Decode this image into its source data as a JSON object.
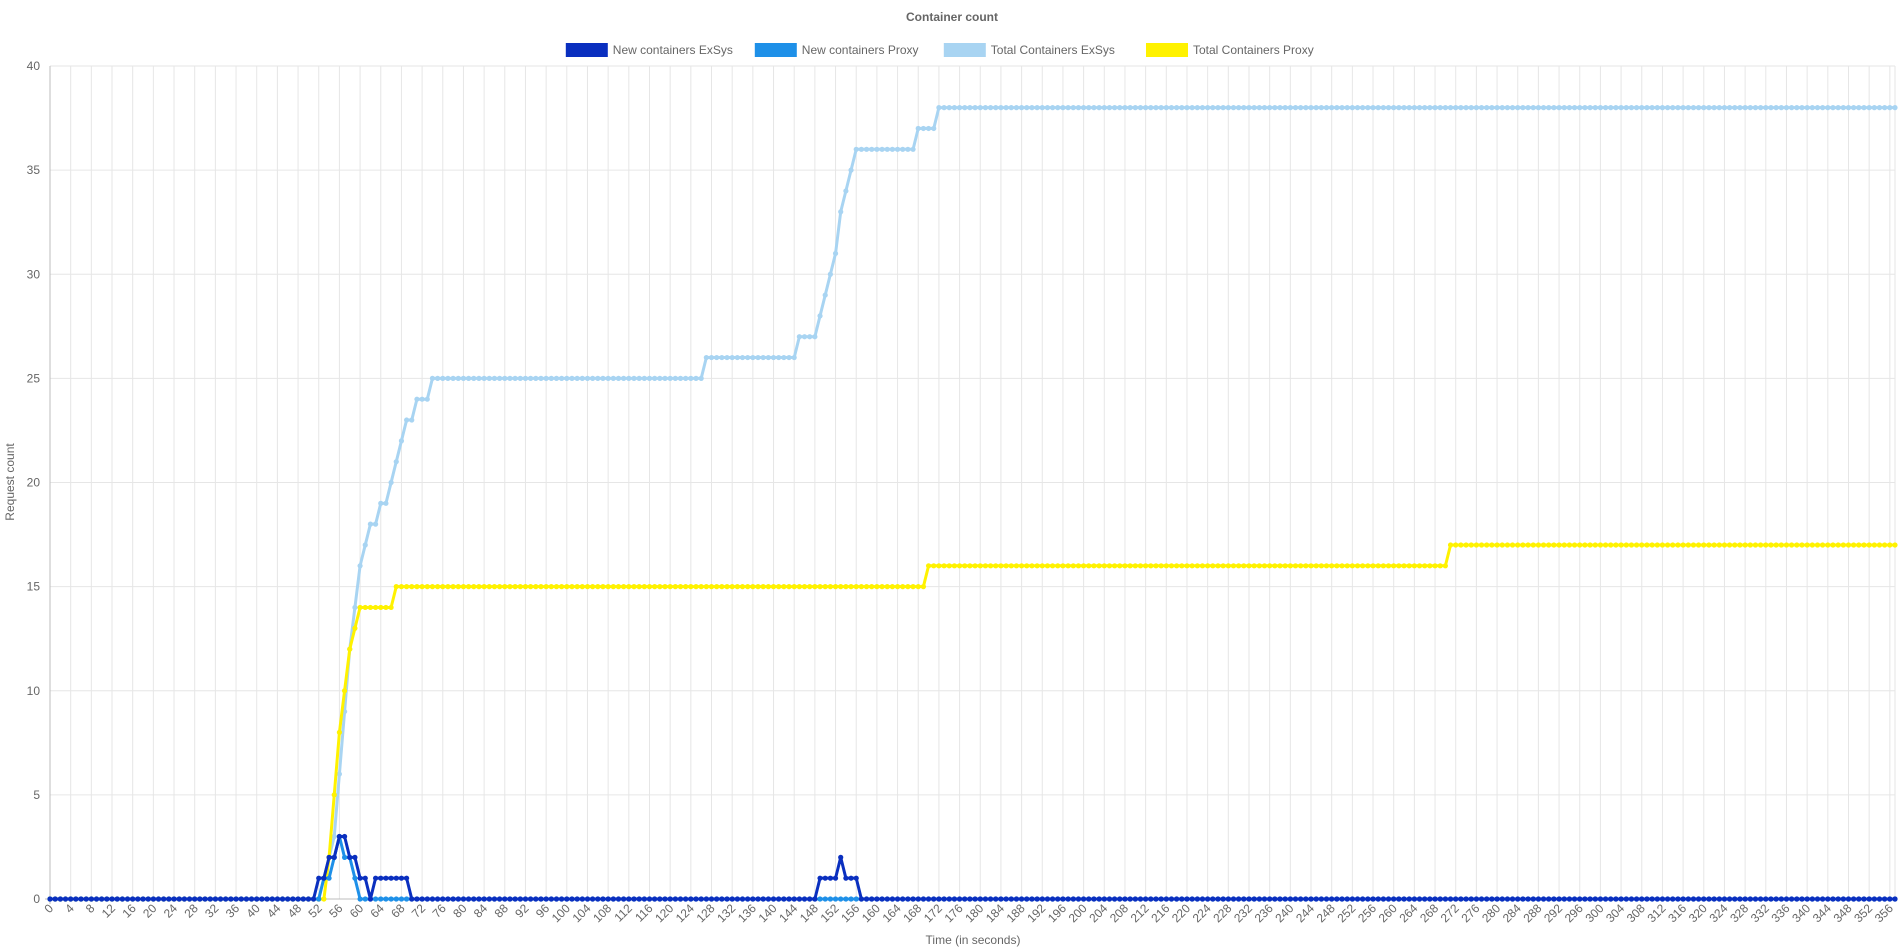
{
  "chart_data": {
    "type": "line",
    "title": "Container count",
    "xlabel": "Time (in seconds)",
    "ylabel": "Request count",
    "xlim": [
      0,
      357
    ],
    "ylim": [
      0,
      40
    ],
    "y_ticks": [
      0,
      5,
      10,
      15,
      20,
      25,
      30,
      35,
      40
    ],
    "x_ticks": [
      0,
      4,
      8,
      12,
      16,
      20,
      24,
      28,
      32,
      36,
      40,
      44,
      48,
      52,
      56,
      60,
      64,
      68,
      72,
      76,
      80,
      84,
      88,
      92,
      96,
      100,
      104,
      108,
      112,
      116,
      120,
      124,
      128,
      132,
      136,
      140,
      144,
      148,
      152,
      156,
      160,
      164,
      168,
      172,
      176,
      180,
      184,
      188,
      192,
      196,
      200,
      204,
      208,
      212,
      216,
      220,
      224,
      228,
      232,
      236,
      240,
      244,
      248,
      252,
      256,
      260,
      264,
      268,
      272,
      276,
      280,
      284,
      288,
      292,
      296,
      300,
      304,
      308,
      312,
      316,
      320,
      324,
      328,
      332,
      336,
      340,
      344,
      348,
      352,
      356
    ],
    "grid": true,
    "legend_position": "top",
    "series": [
      {
        "name": "New containers ExSys",
        "color": "#0a2fbf",
        "steps": [
          [
            0,
            0
          ],
          [
            52,
            1
          ],
          [
            54,
            2
          ],
          [
            56,
            3
          ],
          [
            58,
            2
          ],
          [
            60,
            1
          ],
          [
            62,
            0
          ],
          [
            63,
            1
          ],
          [
            70,
            0
          ],
          [
            149,
            1
          ],
          [
            153,
            2
          ],
          [
            154,
            1
          ],
          [
            157,
            0
          ]
        ]
      },
      {
        "name": "New containers Proxy",
        "color": "#1e90e8",
        "steps": [
          [
            0,
            0
          ],
          [
            53,
            1
          ],
          [
            55,
            2
          ],
          [
            56,
            3
          ],
          [
            57,
            2
          ],
          [
            59,
            1
          ],
          [
            60,
            0
          ]
        ]
      },
      {
        "name": "Total Containers ExSys",
        "color": "#a8d4f2",
        "steps": [
          [
            0,
            0
          ],
          [
            53,
            1
          ],
          [
            54,
            2
          ],
          [
            55,
            3
          ],
          [
            56,
            6
          ],
          [
            57,
            9
          ],
          [
            58,
            12
          ],
          [
            59,
            14
          ],
          [
            60,
            16
          ],
          [
            61,
            17
          ],
          [
            62,
            18
          ],
          [
            64,
            19
          ],
          [
            66,
            20
          ],
          [
            67,
            21
          ],
          [
            68,
            22
          ],
          [
            69,
            23
          ],
          [
            71,
            24
          ],
          [
            74,
            25
          ],
          [
            127,
            26
          ],
          [
            145,
            27
          ],
          [
            149,
            28
          ],
          [
            150,
            29
          ],
          [
            151,
            30
          ],
          [
            152,
            31
          ],
          [
            153,
            33
          ],
          [
            154,
            34
          ],
          [
            155,
            35
          ],
          [
            156,
            36
          ],
          [
            168,
            37
          ],
          [
            172,
            38
          ]
        ]
      },
      {
        "name": "Total Containers Proxy",
        "color": "#fff200",
        "steps": [
          [
            0,
            0
          ],
          [
            54,
            2
          ],
          [
            55,
            5
          ],
          [
            56,
            8
          ],
          [
            57,
            10
          ],
          [
            58,
            12
          ],
          [
            59,
            13
          ],
          [
            60,
            14
          ],
          [
            67,
            15
          ],
          [
            170,
            16
          ],
          [
            271,
            17
          ]
        ]
      }
    ]
  }
}
